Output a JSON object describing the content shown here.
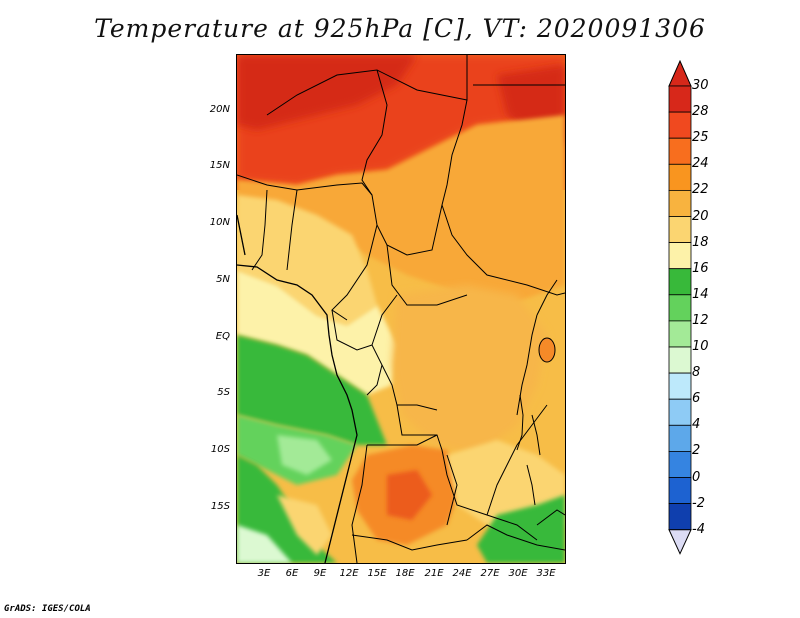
{
  "title": "Temperature at 925hPa [C], VT: 2020091306",
  "credit": "GrADS: IGES/COLA",
  "map": {
    "lat_labels": [
      "20N",
      "15N",
      "10N",
      "5N",
      "EQ",
      "5S",
      "10S",
      "15S"
    ],
    "lon_labels": [
      "3E",
      "6E",
      "9E",
      "12E",
      "15E",
      "18E",
      "21E",
      "24E",
      "27E",
      "30E",
      "33E"
    ]
  },
  "colorbar": {
    "labels": [
      "30",
      "28",
      "25",
      "24",
      "22",
      "20",
      "18",
      "16",
      "14",
      "12",
      "10",
      "8",
      "6",
      "4",
      "2",
      "0",
      "-2",
      "-4"
    ],
    "colors": [
      "#d7281a",
      "#f0491f",
      "#f86e1e",
      "#f9951f",
      "#f8b33f",
      "#fbd571",
      "#fdf2a9",
      "#38b93a",
      "#63d25c",
      "#a3ea97",
      "#dcf9d2",
      "#bde9fb",
      "#8ecbf5",
      "#5da8ea",
      "#3584e1",
      "#1d62d1",
      "#0f3fae",
      "#121b86"
    ],
    "top_arrow_color": "#d7281a",
    "bottom_arrow_color": "#dcdcf5"
  }
}
